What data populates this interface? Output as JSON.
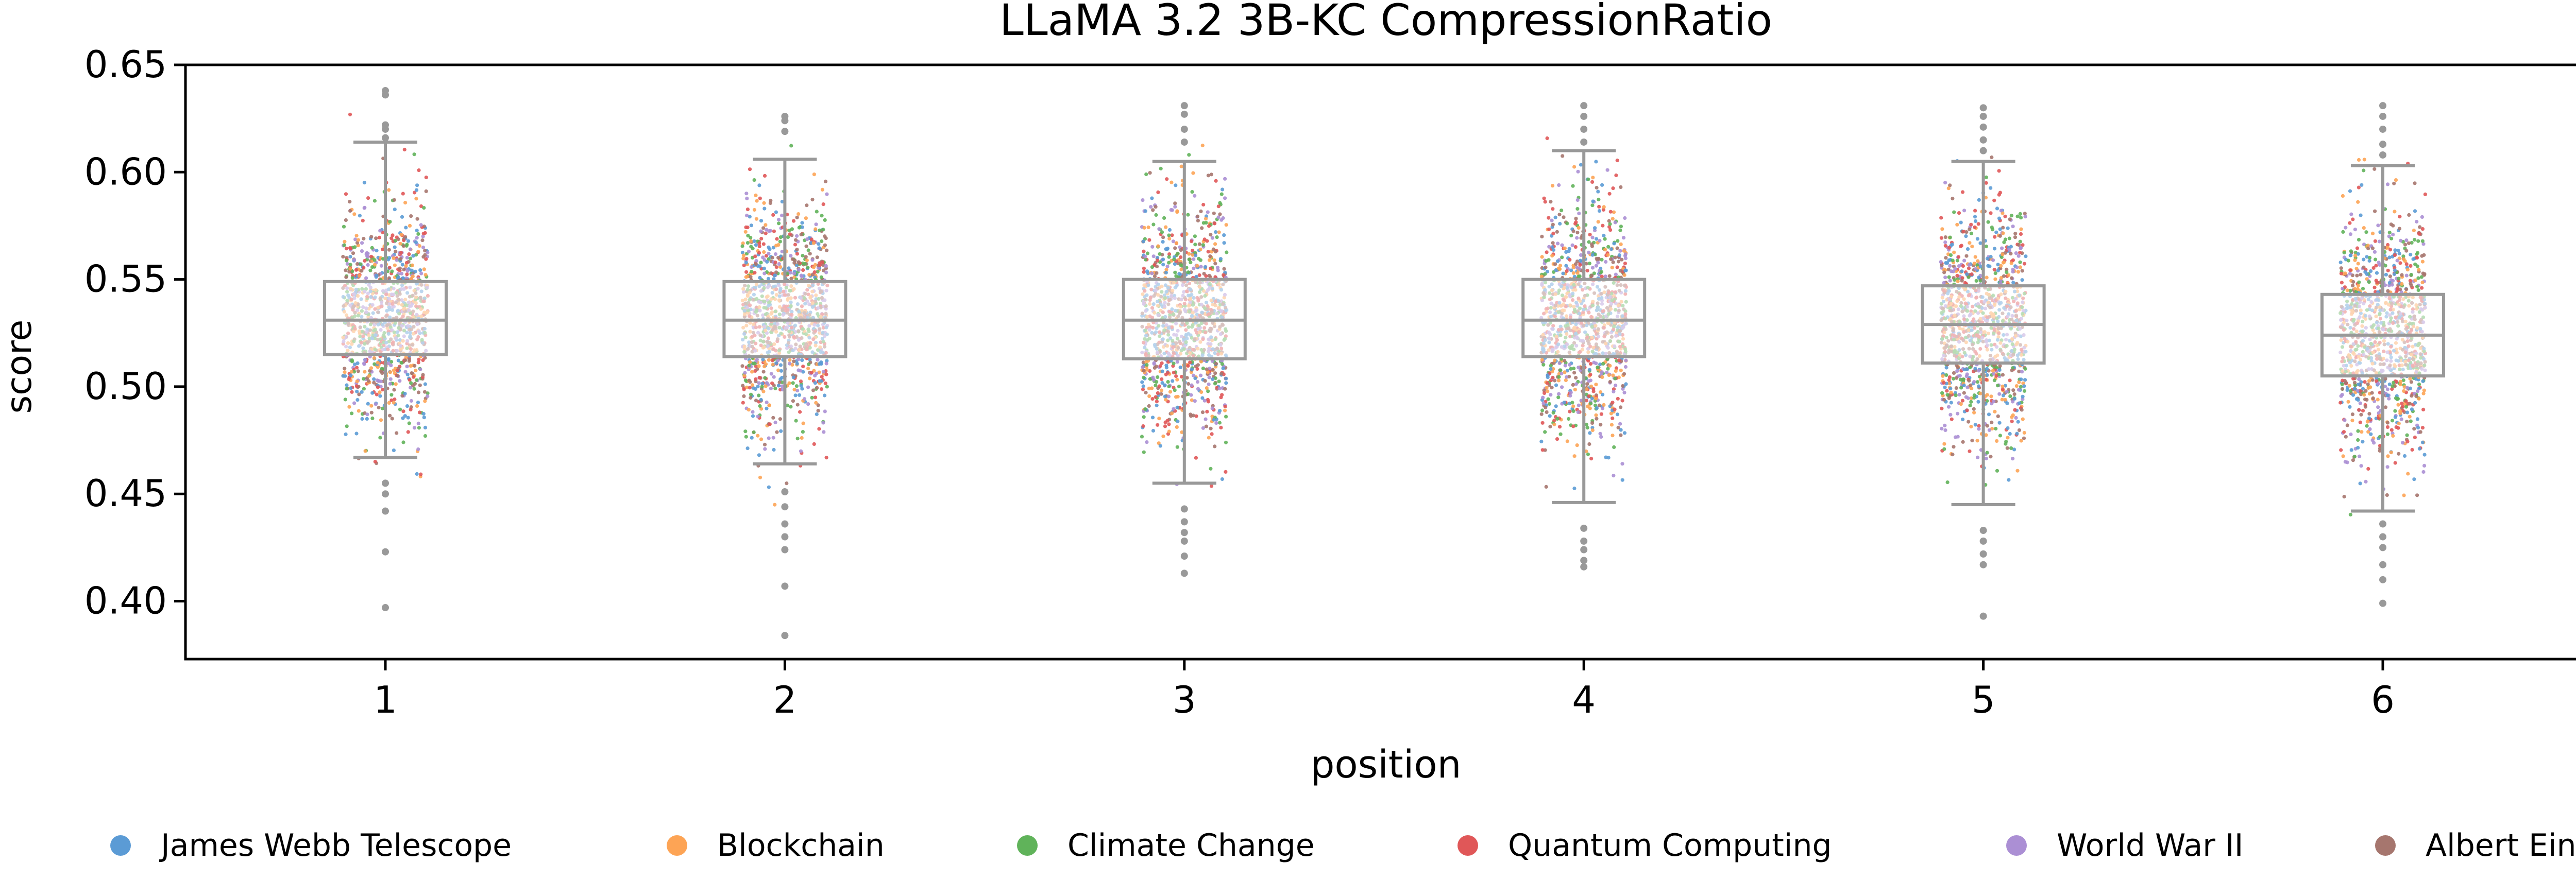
{
  "chart_data": {
    "type": "box",
    "title": "LLaMA 3.2 3B-KC CompressionRatio",
    "xlabel": "position",
    "ylabel": "score",
    "categories": [
      "1",
      "2",
      "3",
      "4",
      "5",
      "6"
    ],
    "ylim": [
      0.373,
      0.65
    ],
    "yticks": [
      "0.65",
      "0.60",
      "0.55",
      "0.50",
      "0.45",
      "0.40"
    ],
    "ytick_values": [
      0.65,
      0.6,
      0.55,
      0.5,
      0.45,
      0.4
    ],
    "boxes": [
      {
        "position": "1",
        "q1": 0.515,
        "median": 0.531,
        "q3": 0.549,
        "whisker_low": 0.467,
        "whisker_high": 0.614
      },
      {
        "position": "2",
        "q1": 0.514,
        "median": 0.531,
        "q3": 0.549,
        "whisker_low": 0.464,
        "whisker_high": 0.606
      },
      {
        "position": "3",
        "q1": 0.513,
        "median": 0.531,
        "q3": 0.55,
        "whisker_low": 0.455,
        "whisker_high": 0.605
      },
      {
        "position": "4",
        "q1": 0.514,
        "median": 0.531,
        "q3": 0.55,
        "whisker_low": 0.446,
        "whisker_high": 0.61
      },
      {
        "position": "5",
        "q1": 0.511,
        "median": 0.529,
        "q3": 0.547,
        "whisker_low": 0.445,
        "whisker_high": 0.605
      },
      {
        "position": "6",
        "q1": 0.505,
        "median": 0.524,
        "q3": 0.543,
        "whisker_low": 0.442,
        "whisker_high": 0.603
      }
    ],
    "outliers": [
      {
        "position": "1",
        "values": [
          0.638,
          0.636,
          0.622,
          0.62,
          0.616,
          0.455,
          0.45,
          0.442,
          0.423,
          0.397
        ]
      },
      {
        "position": "2",
        "values": [
          0.626,
          0.624,
          0.619,
          0.451,
          0.444,
          0.436,
          0.43,
          0.424,
          0.407,
          0.384
        ]
      },
      {
        "position": "3",
        "values": [
          0.631,
          0.627,
          0.62,
          0.614,
          0.443,
          0.437,
          0.432,
          0.428,
          0.421,
          0.413
        ]
      },
      {
        "position": "4",
        "values": [
          0.631,
          0.626,
          0.62,
          0.614,
          0.434,
          0.428,
          0.424,
          0.419,
          0.416
        ]
      },
      {
        "position": "5",
        "values": [
          0.63,
          0.626,
          0.621,
          0.615,
          0.61,
          0.433,
          0.428,
          0.422,
          0.417,
          0.393
        ]
      },
      {
        "position": "6",
        "values": [
          0.631,
          0.626,
          0.62,
          0.613,
          0.608,
          0.436,
          0.43,
          0.425,
          0.417,
          0.41,
          0.399
        ]
      }
    ],
    "series": [
      {
        "name": "James Webb Telescope",
        "color": "#5b9bd5"
      },
      {
        "name": "Blockchain",
        "color": "#fda455"
      },
      {
        "name": "Climate Change",
        "color": "#60b35a"
      },
      {
        "name": "Quantum Computing",
        "color": "#e05758"
      },
      {
        "name": "World War II",
        "color": "#ab8fd4"
      },
      {
        "name": "Albert Einstein",
        "color": "#a6766e"
      }
    ],
    "legend_position": "bottom",
    "grid": false,
    "box_color": "#999999",
    "box_fill": "#ffffff"
  }
}
